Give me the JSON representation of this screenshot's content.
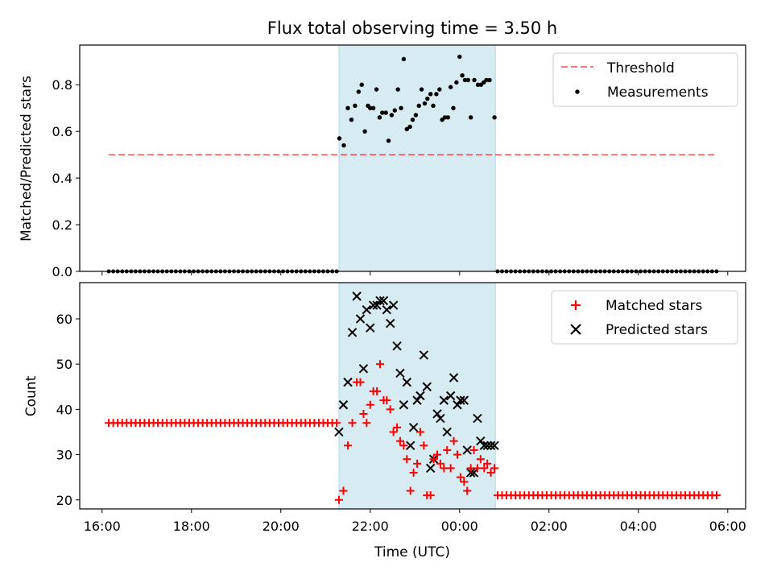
{
  "title": "Flux total observing time = 3.50 h",
  "colors": {
    "shade": "#add8e6",
    "threshold": "#ff0000",
    "measurements": "#000000",
    "matched": "#ff0000",
    "predicted": "#000000"
  },
  "chart_data": [
    {
      "type": "scatter",
      "ylabel": "Matched/Predicted stars",
      "xlim": [
        15.5,
        30.4
      ],
      "ylim": [
        0,
        0.97
      ],
      "yticks": [
        "0.0",
        "0.2",
        "0.4",
        "0.6",
        "0.8"
      ],
      "yticks_values": [
        0,
        0.2,
        0.4,
        0.6,
        0.8
      ],
      "observing_window": [
        21.3,
        24.8
      ],
      "legend": {
        "placement": "upper right",
        "entries": [
          "Threshold",
          "Measurements"
        ]
      },
      "threshold": {
        "name": "Threshold",
        "value": 0.5,
        "x_range": [
          16.15,
          29.75
        ]
      },
      "measurements": {
        "name": "Measurements",
        "zero_baseline": {
          "x_start": 16.15,
          "x_end": 21.25,
          "x_start2": 24.85,
          "x_end2": 29.75,
          "step": 0.1,
          "value": 0
        },
        "x": [
          21.31,
          21.41,
          21.5,
          21.58,
          21.66,
          21.74,
          21.81,
          21.88,
          21.95,
          22.0,
          22.07,
          22.14,
          22.21,
          22.27,
          22.35,
          22.41,
          22.48,
          22.55,
          22.62,
          22.69,
          22.75,
          22.82,
          22.89,
          22.95,
          23.02,
          23.09,
          23.15,
          23.22,
          23.28,
          23.35,
          23.41,
          23.48,
          23.55,
          23.61,
          23.67,
          23.74,
          23.8,
          23.86,
          23.93,
          24.0,
          24.06,
          24.12,
          24.19,
          24.25,
          24.33,
          24.41,
          24.48,
          24.54,
          24.6,
          24.67,
          24.78
        ],
        "y": [
          0.57,
          0.54,
          0.7,
          0.65,
          0.71,
          0.77,
          0.8,
          0.6,
          0.71,
          0.7,
          0.7,
          0.78,
          0.66,
          0.68,
          0.68,
          0.56,
          0.67,
          0.69,
          0.78,
          0.7,
          0.91,
          0.61,
          0.62,
          0.65,
          0.67,
          0.71,
          0.78,
          0.72,
          0.74,
          0.76,
          0.71,
          0.76,
          0.78,
          0.65,
          0.66,
          0.66,
          0.79,
          0.7,
          0.81,
          0.92,
          0.84,
          0.82,
          0.82,
          0.66,
          0.82,
          0.8,
          0.8,
          0.81,
          0.82,
          0.82,
          0.66
        ]
      }
    },
    {
      "type": "scatter",
      "ylabel": "Count",
      "xlabel": "Time (UTC)",
      "xlim": [
        15.5,
        30.4
      ],
      "ylim": [
        18,
        68
      ],
      "xticks": [
        "16:00",
        "18:00",
        "20:00",
        "22:00",
        "00:00",
        "02:00",
        "04:00",
        "06:00"
      ],
      "xticks_values": [
        16,
        18,
        20,
        22,
        24,
        26,
        28,
        30
      ],
      "yticks": [
        "20",
        "30",
        "40",
        "50",
        "60"
      ],
      "yticks_values": [
        20,
        30,
        40,
        50,
        60
      ],
      "observing_window": [
        21.3,
        24.8
      ],
      "legend": {
        "placement": "upper right",
        "entries": [
          "Matched stars",
          "Predicted stars"
        ]
      },
      "matched_baseline": {
        "before": {
          "x_start": 16.15,
          "x_end": 21.25,
          "step": 0.1,
          "value": 37
        },
        "after": {
          "x_start": 24.85,
          "x_end": 29.75,
          "step": 0.1,
          "value": 21
        }
      },
      "matched": {
        "name": "Matched stars",
        "x": [
          21.3,
          21.4,
          21.5,
          21.6,
          21.7,
          21.78,
          21.85,
          21.92,
          22.0,
          22.07,
          22.15,
          22.22,
          22.3,
          22.37,
          22.45,
          22.52,
          22.6,
          22.67,
          22.75,
          22.82,
          22.9,
          22.97,
          23.05,
          23.12,
          23.2,
          23.27,
          23.35,
          23.42,
          23.5,
          23.57,
          23.65,
          23.72,
          23.8,
          23.87,
          23.95,
          24.02,
          24.1,
          24.17,
          24.25,
          24.32,
          24.4,
          24.47,
          24.55,
          24.62,
          24.7,
          24.78
        ],
        "y": [
          20,
          22,
          32,
          37,
          46,
          46,
          39,
          37,
          41,
          44,
          44,
          50,
          42,
          42,
          40,
          35,
          36,
          33,
          32,
          29,
          22,
          26,
          28,
          35,
          32,
          21,
          21,
          29,
          30,
          28,
          27,
          31,
          27,
          33,
          30,
          25,
          24,
          22,
          27,
          31,
          27,
          29,
          27,
          28,
          26,
          27
        ]
      },
      "predicted": {
        "name": "Predicted stars",
        "x": [
          21.3,
          21.4,
          21.5,
          21.6,
          21.7,
          21.78,
          21.85,
          21.92,
          22.0,
          22.07,
          22.15,
          22.22,
          22.3,
          22.37,
          22.45,
          22.52,
          22.6,
          22.67,
          22.75,
          22.82,
          22.9,
          22.97,
          23.05,
          23.12,
          23.2,
          23.27,
          23.35,
          23.42,
          23.5,
          23.57,
          23.65,
          23.72,
          23.8,
          23.87,
          23.95,
          24.02,
          24.1,
          24.17,
          24.25,
          24.32,
          24.4,
          24.47,
          24.55,
          24.62,
          24.7,
          24.78
        ],
        "y": [
          35,
          41,
          46,
          57,
          65,
          60,
          49,
          62,
          58,
          63,
          63,
          64,
          64,
          62,
          59,
          63,
          54,
          48,
          41,
          46,
          32,
          36,
          42,
          43,
          52,
          45,
          27,
          29,
          39,
          38,
          42,
          35,
          43,
          47,
          41,
          42,
          42,
          31,
          26,
          26,
          38,
          33,
          32,
          32,
          32,
          32
        ]
      }
    }
  ]
}
